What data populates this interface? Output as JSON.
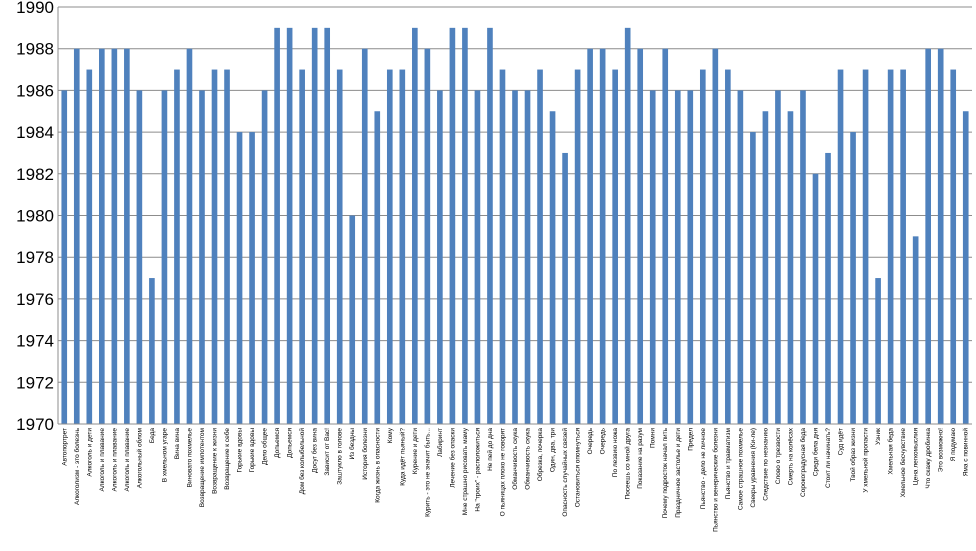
{
  "chart_data": {
    "type": "bar",
    "title": "",
    "xlabel": "",
    "ylabel": "",
    "ylim": [
      1970,
      1990
    ],
    "yticks": [
      1970,
      1972,
      1974,
      1976,
      1978,
      1980,
      1982,
      1984,
      1986,
      1988,
      1990
    ],
    "grid": true,
    "legend": "none",
    "bar_color": "#4f81bd",
    "categories": [
      "Автопортрет",
      "Алкоголизм - это болезнь",
      "Алкоголь и дети",
      "Алкоголь и плавание",
      "Алкоголь и плавание",
      "Алкоголь и плавание",
      "Алкогольный облом",
      "Беда",
      "В хмельном угаре",
      "Вина вина",
      "Виновато похмелье",
      "Возвращение импотентом",
      "Возвращение к жизни",
      "Возвращение к себе",
      "Горькие вдовы",
      "Горькие вдовы",
      "Дело общее",
      "Допьемся",
      "Допьемся",
      "Дом без колыбельной",
      "Досуг без вина",
      "Зависит от Вас!",
      "Заштукло в голове",
      "Из бездны",
      "История болезни",
      "Когда жизнь в опасности",
      "Кому",
      "Куда идёт пьяный?",
      "Курение и дети",
      "Курить - это не значит быть...",
      "Лабиринт",
      "Лечение без опаски",
      "Мне страшно рисовать маму",
      "На \"троих\" - расположиться",
      "Не пей до дна",
      "О пьяницах плохо не говорят",
      "Обманчивость скука",
      "Обманчивость скука",
      "Обрезка, почерка",
      "Один, два, три",
      "Опасность случайных связей",
      "Остановиться опомнуться",
      "Очередь",
      "Очередь",
      "По лезвию ножа",
      "Посеешь со мной друга",
      "Показание на разум",
      "Помни",
      "Почему подросток начал пить",
      "Праздничное застолье и дети",
      "Предел",
      "Пьянство - дело не личное",
      "Пьянство и венерические болезни",
      "Пьянство и травматизм",
      "Самое страшное похмелье",
      "Свекры уравнения (Ки-ле)",
      "Следствие по незнанию",
      "Слово о трезвости",
      "Смерть на колёсах",
      "Сорокоградусная беда",
      "Среди бела дня",
      "Стоит ли начинать?",
      "Суд идёт",
      "Твой образ жизни",
      "У хмельной пропасти",
      "Узник",
      "Хмельная беда",
      "Хмельное бесчувствие",
      "Цена легкомыслия",
      "Что скажу дробинка",
      "Это возможно!",
      "Я подумаю",
      "Яма с повинной"
    ],
    "values": [
      1986,
      1988,
      1987,
      1988,
      1988,
      1988,
      1986,
      1977,
      1986,
      1987,
      1988,
      1986,
      1987,
      1987,
      1984,
      1984,
      1986,
      1989,
      1989,
      1987,
      1989,
      1989,
      1987,
      1980,
      1988,
      1985,
      1987,
      1987,
      1989,
      1988,
      1986,
      1989,
      1989,
      1986,
      1989,
      1987,
      1986,
      1986,
      1987,
      1985,
      1983,
      1987,
      1988,
      1988,
      1987,
      1989,
      1988,
      1986,
      1988,
      1986,
      1986,
      1987,
      1988,
      1987,
      1986,
      1984,
      1985,
      1986,
      1985,
      1986,
      1982,
      1983,
      1987,
      1984,
      1987,
      1977,
      1987,
      1987,
      1979,
      1988,
      1988,
      1987,
      1985
    ]
  }
}
